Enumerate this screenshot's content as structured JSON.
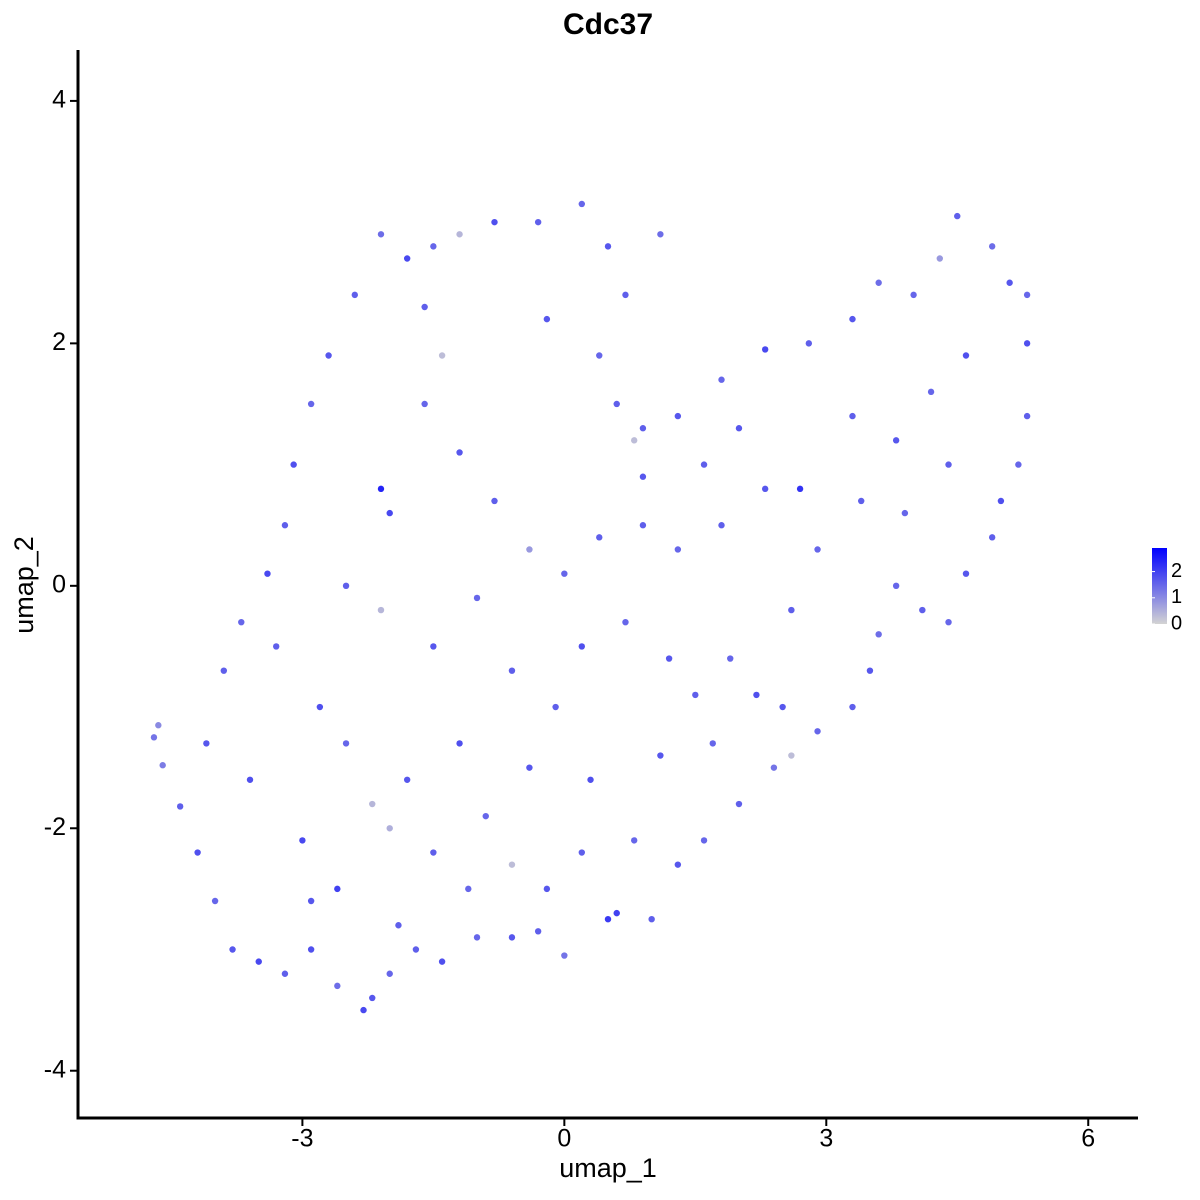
{
  "chart_data": {
    "type": "scatter",
    "title": "Cdc37",
    "xlabel": "umap_1",
    "ylabel": "umap_2",
    "xlim": [
      -5.57,
      6.57
    ],
    "ylim": [
      -4.39,
      4.42
    ],
    "xticks": [
      -3,
      0,
      3,
      6
    ],
    "yticks": [
      -4,
      -2,
      0,
      2,
      4
    ],
    "colorbar": {
      "low_color": "#d3d3d3",
      "high_color": "#0000ff",
      "lim": [
        0,
        2.9
      ],
      "ticks": [
        0,
        1,
        2
      ]
    },
    "x": [
      -4.7,
      -4.65,
      -4.6,
      -4.4,
      -4.2,
      -4.0,
      -3.8,
      -3.5,
      -3.2,
      -2.9,
      -2.6,
      -2.3,
      -2.2,
      -2.0,
      -1.7,
      -1.4,
      -1.0,
      -0.6,
      -0.3,
      0.0,
      0.5,
      0.6,
      1.0,
      1.3,
      1.6,
      2.0,
      2.4,
      2.6,
      2.9,
      3.3,
      3.5,
      3.6,
      3.8,
      4.1,
      4.4,
      4.6,
      4.9,
      5.0,
      5.2,
      5.3,
      5.3,
      5.3,
      5.1,
      4.9,
      4.5,
      4.3,
      4.0,
      3.6,
      3.3,
      2.8,
      2.3,
      1.8,
      1.3,
      0.9,
      0.8,
      0.6,
      0.4,
      0.7,
      1.1,
      0.5,
      0.2,
      -0.3,
      -0.8,
      -1.2,
      -1.5,
      -1.8,
      -2.1,
      -2.4,
      -2.7,
      -2.9,
      -3.1,
      -3.2,
      -3.4,
      -3.7,
      -3.9,
      -4.1,
      -3.6,
      -3.0,
      -2.6,
      -2.5,
      -2.2,
      -2.0,
      -1.8,
      -1.5,
      -1.2,
      -0.9,
      -0.6,
      -0.4,
      -0.1,
      0.3,
      0.8,
      1.1,
      1.5,
      1.9,
      2.2,
      2.6,
      2.9,
      2.7,
      2.3,
      1.8,
      1.3,
      0.9,
      0.4,
      0.0,
      -0.4,
      -0.8,
      -1.2,
      -1.6,
      -2.0,
      -2.1,
      -2.5,
      -2.1,
      -1.5,
      -1.0,
      -0.6,
      0.2,
      0.7,
      1.2,
      3.3,
      3.8,
      4.2,
      4.6,
      4.4,
      3.9,
      3.4,
      2.0,
      1.6,
      -1.4,
      -1.6,
      -0.2,
      0.9,
      -2.8,
      -3.3,
      -2.9,
      -1.9,
      -1.1,
      -0.2,
      0.2,
      1.7,
      2.5
    ],
    "y": [
      -1.25,
      -1.15,
      -1.48,
      -1.82,
      -2.2,
      -2.6,
      -3.0,
      -3.1,
      -3.2,
      -3.0,
      -3.3,
      -3.5,
      -3.4,
      -3.2,
      -3.0,
      -3.1,
      -2.9,
      -2.9,
      -2.85,
      -3.05,
      -2.75,
      -2.7,
      -2.75,
      -2.3,
      -2.1,
      -1.8,
      -1.5,
      -1.4,
      -1.2,
      -1.0,
      -0.7,
      -0.4,
      0.0,
      -0.2,
      -0.3,
      0.1,
      0.4,
      0.7,
      1.0,
      1.4,
      2.0,
      2.4,
      2.5,
      2.8,
      3.05,
      2.7,
      2.4,
      2.5,
      2.2,
      2.0,
      1.95,
      1.7,
      1.4,
      1.3,
      1.2,
      1.5,
      1.9,
      2.4,
      2.9,
      2.8,
      3.15,
      3.0,
      3.0,
      2.9,
      2.8,
      2.7,
      2.9,
      2.4,
      1.9,
      1.5,
      1.0,
      0.5,
      0.1,
      -0.3,
      -0.7,
      -1.3,
      -1.6,
      -2.1,
      -2.5,
      -1.3,
      -1.8,
      -2.0,
      -1.6,
      -2.2,
      -1.3,
      -1.9,
      -2.3,
      -1.5,
      -1.0,
      -1.6,
      -2.1,
      -1.4,
      -0.9,
      -0.6,
      -0.9,
      -0.2,
      0.3,
      0.8,
      0.8,
      0.5,
      0.3,
      0.9,
      0.4,
      0.1,
      0.3,
      0.7,
      1.1,
      1.5,
      0.6,
      0.8,
      0.0,
      -0.2,
      -0.5,
      -0.1,
      -0.7,
      -0.5,
      -0.3,
      -0.6,
      1.4,
      1.2,
      1.6,
      1.9,
      1.0,
      0.6,
      0.7,
      1.3,
      1.0,
      1.9,
      2.3,
      2.2,
      0.5,
      -1.0,
      -0.5,
      -2.6,
      -2.8,
      -2.5,
      -2.5,
      -2.2,
      -1.3,
      -1.0
    ],
    "values": [
      1.3,
      1.0,
      1.2,
      1.6,
      1.8,
      1.5,
      1.7,
      1.9,
      1.6,
      1.8,
      1.4,
      1.9,
      1.7,
      1.5,
      1.6,
      1.8,
      1.5,
      1.7,
      1.6,
      1.3,
      2.1,
      2.0,
      1.6,
      1.7,
      1.5,
      1.6,
      1.3,
      0.3,
      1.5,
      1.6,
      1.7,
      1.4,
      1.5,
      1.6,
      1.5,
      1.7,
      1.6,
      1.8,
      1.5,
      1.6,
      1.8,
      1.5,
      1.7,
      1.4,
      1.6,
      0.8,
      1.5,
      1.4,
      1.7,
      1.6,
      1.9,
      1.5,
      1.7,
      1.6,
      0.3,
      1.6,
      1.5,
      1.6,
      1.4,
      1.7,
      1.5,
      1.6,
      1.8,
      0.4,
      1.5,
      1.9,
      1.4,
      1.6,
      1.7,
      1.5,
      1.8,
      1.6,
      1.9,
      1.5,
      1.6,
      1.7,
      1.8,
      1.9,
      2.0,
      1.5,
      0.4,
      0.5,
      1.7,
      1.6,
      1.8,
      1.5,
      0.3,
      1.7,
      1.6,
      1.8,
      1.5,
      1.7,
      1.6,
      1.5,
      1.8,
      1.6,
      1.5,
      2.2,
      1.7,
      1.6,
      1.5,
      1.7,
      1.6,
      1.5,
      0.8,
      1.6,
      1.7,
      1.5,
      1.9,
      2.4,
      1.6,
      0.4,
      1.7,
      1.5,
      1.6,
      1.8,
      1.5,
      1.7,
      1.6,
      1.7,
      1.5,
      1.8,
      1.6,
      1.5,
      1.6,
      1.7,
      1.6,
      0.3,
      1.6,
      1.7,
      1.6,
      1.8,
      1.6,
      1.7,
      1.6,
      1.5,
      1.7,
      1.6,
      1.5,
      1.7
    ]
  }
}
